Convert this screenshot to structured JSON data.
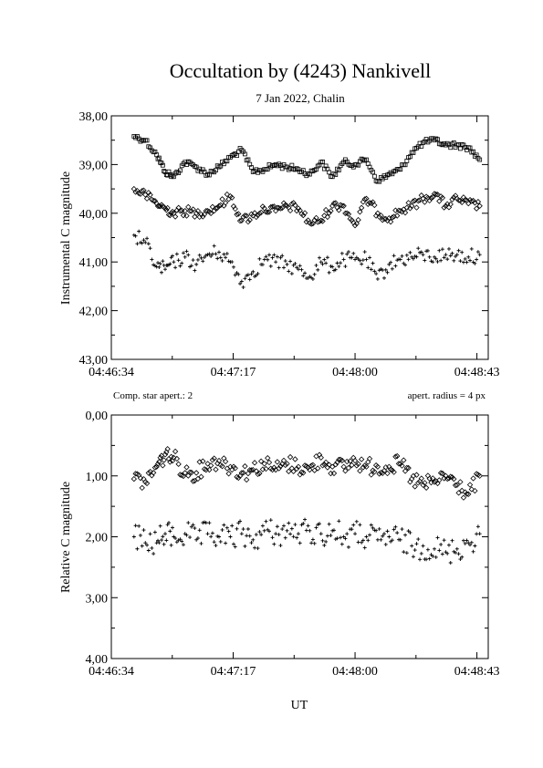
{
  "title": "Occultation by (4243) Nankivell",
  "subtitle": "7 Jan 2022, Chalin",
  "xlabel": "UT",
  "colors": {
    "axis": "#000000",
    "marker": "#000000",
    "background": "#ffffff"
  },
  "top_panel": {
    "ylabel": "Instrumental C magnitude",
    "note_left": "Comp. star apert.: 2",
    "note_right": "apert. radius = 4 px"
  },
  "bottom_panel": {
    "ylabel": "Relative C magnitude"
  },
  "chart_data": [
    {
      "type": "scatter",
      "panel": "top",
      "ylabel": "Instrumental C magnitude",
      "ylim": [
        38,
        43
      ],
      "y_inverted": true,
      "xlim": [
        "04:46:34",
        "04:48:47"
      ],
      "x_ticks": [
        "04:46:34",
        "04:47:17",
        "04:48:00",
        "04:48:43"
      ],
      "y_ticks": [
        "38,00",
        "39,00",
        "40,00",
        "41,00",
        "42,00",
        "43,00"
      ],
      "grid": false,
      "series": [
        {
          "marker": "square",
          "x": [
            "04:46:42",
            "04:46:46",
            "04:46:50",
            "04:46:53",
            "04:46:56",
            "04:47:00",
            "04:47:04",
            "04:47:08",
            "04:47:12",
            "04:47:16",
            "04:47:20",
            "04:47:24",
            "04:47:28",
            "04:47:32",
            "04:47:36",
            "04:47:40",
            "04:47:44",
            "04:47:48",
            "04:47:52",
            "04:47:56",
            "04:48:00",
            "04:48:04",
            "04:48:08",
            "04:48:12",
            "04:48:16",
            "04:48:20",
            "04:48:24",
            "04:48:28",
            "04:48:32",
            "04:48:36",
            "04:48:40",
            "04:48:44"
          ],
          "y": [
            38.42,
            38.5,
            38.8,
            39.15,
            39.25,
            38.95,
            39.05,
            39.2,
            39.05,
            38.85,
            38.7,
            39.15,
            39.1,
            39.0,
            39.05,
            39.1,
            39.2,
            38.95,
            39.25,
            38.95,
            39.0,
            38.9,
            39.35,
            39.2,
            39.1,
            38.75,
            38.55,
            38.5,
            38.6,
            38.6,
            38.65,
            38.9
          ]
        },
        {
          "marker": "diamond",
          "x": [
            "04:46:42",
            "04:46:46",
            "04:46:50",
            "04:46:53",
            "04:46:56",
            "04:47:00",
            "04:47:04",
            "04:47:08",
            "04:47:12",
            "04:47:16",
            "04:47:20",
            "04:47:24",
            "04:47:28",
            "04:47:32",
            "04:47:36",
            "04:47:40",
            "04:47:44",
            "04:47:48",
            "04:47:52",
            "04:47:56",
            "04:48:00",
            "04:48:04",
            "04:48:08",
            "04:48:12",
            "04:48:16",
            "04:48:20",
            "04:48:24",
            "04:48:28",
            "04:48:32",
            "04:48:36",
            "04:48:40",
            "04:48:44"
          ],
          "y": [
            39.5,
            39.62,
            39.8,
            39.9,
            40.0,
            39.95,
            40.0,
            39.95,
            39.85,
            39.65,
            40.15,
            40.05,
            39.9,
            39.95,
            39.85,
            39.9,
            40.2,
            40.15,
            39.85,
            39.85,
            40.25,
            39.7,
            40.0,
            40.1,
            39.95,
            39.85,
            39.7,
            39.6,
            39.85,
            39.7,
            39.8,
            39.85
          ]
        },
        {
          "marker": "plus",
          "x": [
            "04:46:42",
            "04:46:46",
            "04:46:50",
            "04:46:53",
            "04:46:56",
            "04:47:00",
            "04:47:04",
            "04:47:08",
            "04:47:12",
            "04:47:16",
            "04:47:20",
            "04:47:24",
            "04:47:28",
            "04:47:32",
            "04:47:36",
            "04:47:40",
            "04:47:44",
            "04:47:48",
            "04:47:52",
            "04:47:56",
            "04:48:00",
            "04:48:04",
            "04:48:08",
            "04:48:12",
            "04:48:16",
            "04:48:20",
            "04:48:24",
            "04:48:28",
            "04:48:32",
            "04:48:36",
            "04:48:40",
            "04:48:44"
          ],
          "y": [
            40.45,
            40.6,
            41.1,
            41.15,
            41.0,
            40.9,
            41.05,
            40.85,
            40.8,
            41.0,
            41.4,
            41.2,
            40.95,
            41.0,
            41.05,
            41.15,
            41.3,
            41.0,
            41.1,
            40.95,
            40.95,
            40.95,
            41.35,
            41.05,
            40.95,
            40.9,
            40.85,
            40.9,
            40.85,
            40.85,
            40.9,
            40.85
          ]
        }
      ]
    },
    {
      "type": "scatter",
      "panel": "bottom",
      "ylabel": "Relative C magnitude",
      "ylim": [
        0,
        4
      ],
      "y_inverted": true,
      "xlim": [
        "04:46:34",
        "04:48:47"
      ],
      "x_ticks": [
        "04:46:34",
        "04:47:17",
        "04:48:00",
        "04:48:43"
      ],
      "y_ticks": [
        "0,00",
        "1,00",
        "2,00",
        "3,00",
        "4,00"
      ],
      "grid": false,
      "series": [
        {
          "marker": "diamond",
          "x": [
            "04:46:42",
            "04:46:46",
            "04:46:50",
            "04:46:53",
            "04:46:56",
            "04:47:00",
            "04:47:04",
            "04:47:08",
            "04:47:12",
            "04:47:16",
            "04:47:20",
            "04:47:24",
            "04:47:28",
            "04:47:32",
            "04:47:36",
            "04:47:40",
            "04:47:44",
            "04:47:48",
            "04:47:52",
            "04:47:56",
            "04:48:00",
            "04:48:04",
            "04:48:08",
            "04:48:12",
            "04:48:16",
            "04:48:20",
            "04:48:24",
            "04:48:28",
            "04:48:32",
            "04:48:36",
            "04:48:40",
            "04:48:44"
          ],
          "y": [
            1.05,
            1.1,
            0.85,
            0.65,
            0.7,
            0.95,
            0.95,
            0.8,
            0.75,
            0.85,
            0.95,
            0.9,
            0.8,
            0.9,
            0.8,
            0.85,
            0.9,
            0.7,
            0.85,
            0.85,
            0.75,
            0.85,
            0.85,
            0.85,
            0.8,
            1.05,
            1.15,
            1.1,
            1.0,
            1.15,
            1.3,
            1.0
          ]
        },
        {
          "marker": "plus",
          "x": [
            "04:46:42",
            "04:46:46",
            "04:46:50",
            "04:46:53",
            "04:46:56",
            "04:47:00",
            "04:47:04",
            "04:47:08",
            "04:47:12",
            "04:47:16",
            "04:47:20",
            "04:47:24",
            "04:47:28",
            "04:47:32",
            "04:47:36",
            "04:47:40",
            "04:47:44",
            "04:47:48",
            "04:47:52",
            "04:47:56",
            "04:48:00",
            "04:48:04",
            "04:48:08",
            "04:48:12",
            "04:48:16",
            "04:48:20",
            "04:48:24",
            "04:48:28",
            "04:48:32",
            "04:48:36",
            "04:48:40",
            "04:48:44"
          ],
          "y": [
            2.0,
            2.1,
            2.1,
            1.95,
            2.0,
            1.95,
            2.05,
            1.95,
            2.0,
            2.0,
            1.95,
            2.05,
            1.9,
            1.95,
            1.9,
            1.95,
            1.9,
            1.95,
            1.9,
            2.0,
            1.95,
            2.0,
            2.05,
            2.0,
            2.05,
            2.15,
            2.15,
            2.2,
            2.25,
            2.2,
            2.1,
            1.95
          ]
        }
      ]
    }
  ]
}
